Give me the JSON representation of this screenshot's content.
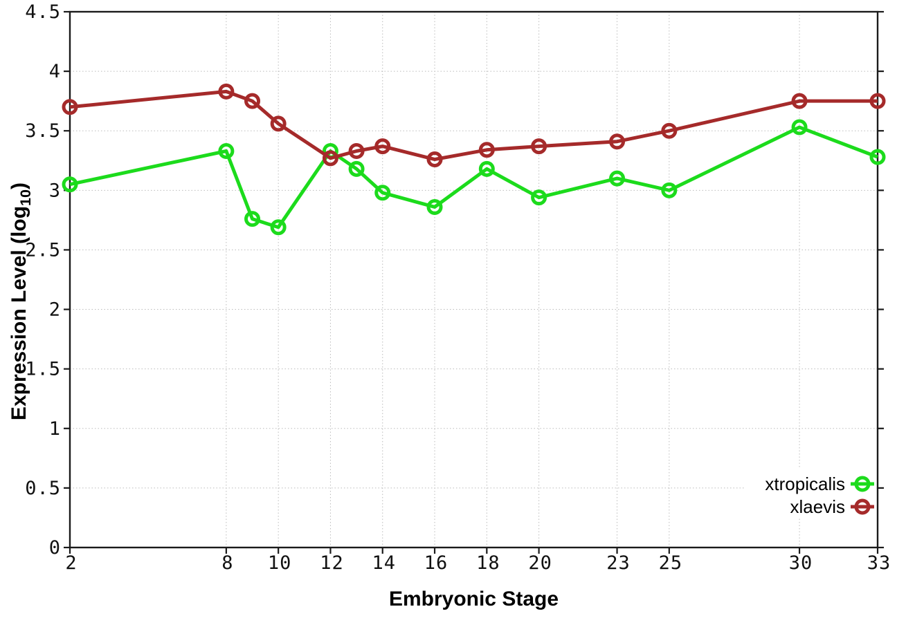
{
  "chart_data": {
    "type": "line",
    "title": "",
    "xlabel": "Embryonic Stage",
    "ylabel": "Expression Level (log10)",
    "ylabel_parts": {
      "main": "Expression Level (log",
      "sub": "10",
      "close": ")"
    },
    "x": [
      2,
      8,
      9,
      10,
      12,
      13,
      14,
      16,
      18,
      20,
      23,
      25,
      30,
      33
    ],
    "xticks": [
      2,
      8,
      10,
      12,
      14,
      16,
      18,
      20,
      23,
      25,
      30,
      33
    ],
    "yticks": [
      0,
      0.5,
      1,
      1.5,
      2,
      2.5,
      3,
      3.5,
      4,
      4.5
    ],
    "xlim": [
      2,
      33
    ],
    "ylim": [
      0,
      4.5
    ],
    "grid": true,
    "grid_style": "dotted",
    "legend_position": "bottom-right",
    "series": [
      {
        "name": "xtropicalis",
        "color": "#1CDB1C",
        "marker": "open-circle",
        "values": [
          3.05,
          3.33,
          2.76,
          2.69,
          3.33,
          3.18,
          2.98,
          2.86,
          3.18,
          2.94,
          3.1,
          3.0,
          3.53,
          3.28
        ]
      },
      {
        "name": "xlaevis",
        "color": "#A52A2A",
        "marker": "open-circle",
        "values": [
          3.7,
          3.83,
          3.75,
          3.56,
          3.27,
          3.33,
          3.37,
          3.26,
          3.34,
          3.37,
          3.41,
          3.5,
          3.75,
          3.75
        ]
      }
    ]
  },
  "colors": {
    "background": "#ffffff",
    "border": "#1a1a1a",
    "grid": "#bbbbbb",
    "tick_text": "#111111",
    "series_xtropicalis": "#1CDB1C",
    "series_xlaevis": "#A52A2A"
  }
}
